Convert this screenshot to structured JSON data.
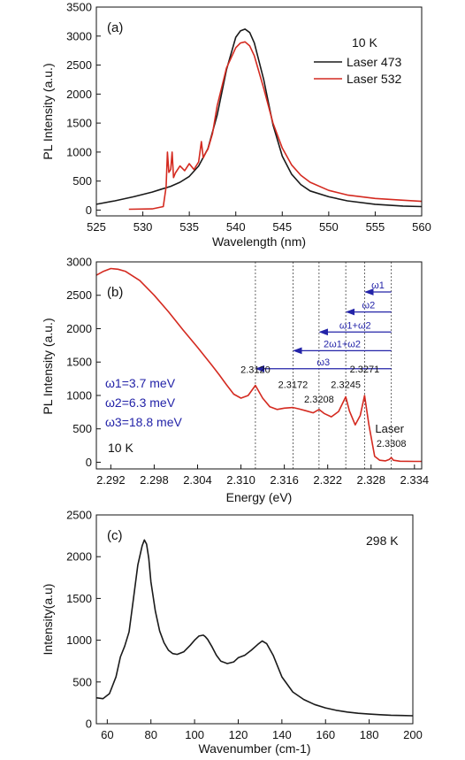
{
  "colors": {
    "black": "#1a1a1a",
    "red": "#d42a20",
    "blue": "#2323a8",
    "axis": "#111111"
  },
  "chart_data": [
    {
      "type": "line",
      "panel_label": "(a)",
      "xlabel": "Wavelength (nm)",
      "ylabel": "PL Intensity (a.u.)",
      "xlim": [
        525,
        560
      ],
      "ylim": [
        -100,
        3500
      ],
      "x_ticks": [
        "525",
        "530",
        "535",
        "540",
        "545",
        "550",
        "555",
        "560"
      ],
      "y_ticks": [
        "0",
        "500",
        "1000",
        "1500",
        "2000",
        "2500",
        "3000",
        "3500"
      ],
      "legend_title": "10 K",
      "legend_position": "top-right",
      "series": [
        {
          "name": "Laser 473",
          "color": "#1a1a1a",
          "x": [
            525,
            527,
            529,
            531,
            532,
            533,
            534,
            535,
            536,
            537,
            538,
            539,
            540,
            540.5,
            541,
            541.5,
            542,
            543,
            544,
            545,
            546,
            547,
            548,
            550,
            552,
            555,
            558,
            560
          ],
          "y": [
            100,
            160,
            230,
            310,
            360,
            410,
            480,
            580,
            760,
            1060,
            1640,
            2420,
            2980,
            3090,
            3120,
            3060,
            2880,
            2250,
            1470,
            930,
            620,
            440,
            330,
            230,
            160,
            100,
            70,
            60
          ]
        },
        {
          "name": "Laser 532",
          "color": "#d42a20",
          "x": [
            528.5,
            531,
            532.2,
            532.5,
            532.65,
            532.8,
            533,
            533.15,
            533.3,
            533.5,
            534,
            534.5,
            535,
            535.5,
            536,
            536.3,
            536.5,
            536.8,
            537,
            537.5,
            538,
            539,
            540,
            540.5,
            541,
            541.5,
            542,
            543,
            544,
            545,
            546,
            547,
            548,
            550,
            552,
            555,
            558,
            560
          ],
          "y": [
            15,
            20,
            60,
            400,
            1000,
            650,
            700,
            1000,
            560,
            640,
            760,
            680,
            800,
            700,
            830,
            1180,
            900,
            1000,
            1050,
            1320,
            1800,
            2450,
            2800,
            2880,
            2900,
            2830,
            2660,
            2100,
            1500,
            1070,
            780,
            600,
            480,
            340,
            260,
            200,
            170,
            150
          ]
        }
      ]
    },
    {
      "type": "line",
      "panel_label": "(b)",
      "xlabel": "Energy (eV)",
      "ylabel": "PL Intensity (a.u.)",
      "xlim": [
        2.29,
        2.335
      ],
      "ylim": [
        -100,
        3000
      ],
      "x_ticks": [
        "2.292",
        "2.298",
        "2.304",
        "2.310",
        "2.316",
        "2.322",
        "2.328",
        "2.334"
      ],
      "y_ticks": [
        "0",
        "500",
        "1000",
        "1500",
        "2000",
        "2500",
        "3000"
      ],
      "temperature": "10 K",
      "series": [
        {
          "name": "",
          "color": "#d42a20",
          "x": [
            2.29,
            2.291,
            2.292,
            2.293,
            2.294,
            2.296,
            2.298,
            2.3,
            2.302,
            2.304,
            2.306,
            2.307,
            2.308,
            2.309,
            2.31,
            2.311,
            2.312,
            2.313,
            2.314,
            2.315,
            2.316,
            2.3172,
            2.318,
            2.319,
            2.32,
            2.3208,
            2.3215,
            2.3225,
            2.3235,
            2.3245,
            2.325,
            2.3258,
            2.3265,
            2.3271,
            2.3277,
            2.3285,
            2.3292,
            2.33,
            2.3305,
            2.3308,
            2.3311,
            2.332,
            2.334,
            2.335
          ],
          "y": [
            2800,
            2860,
            2900,
            2890,
            2860,
            2720,
            2500,
            2250,
            1980,
            1720,
            1450,
            1310,
            1160,
            1020,
            960,
            1000,
            1150,
            960,
            830,
            790,
            810,
            820,
            800,
            770,
            740,
            790,
            730,
            680,
            760,
            980,
            770,
            560,
            700,
            1000,
            560,
            90,
            30,
            20,
            40,
            70,
            30,
            15,
            12,
            12
          ]
        }
      ],
      "peak_labels": [
        {
          "x": 2.312,
          "text": "2.3120"
        },
        {
          "x": 2.3172,
          "text": "2.3172"
        },
        {
          "x": 2.3208,
          "text": "2.3208"
        },
        {
          "x": 2.3245,
          "text": "2.3245"
        },
        {
          "x": 2.3271,
          "text": "2.3271"
        },
        {
          "x": 2.3308,
          "text": "2.3308",
          "title": "Laser"
        }
      ],
      "arrows": [
        {
          "label": "ω1",
          "from": 2.3308,
          "to": 2.3271,
          "y": 2550
        },
        {
          "label": "ω2",
          "from": 2.3308,
          "to": 2.3245,
          "y": 2250
        },
        {
          "label": "ω1+ω2",
          "from": 2.3308,
          "to": 2.3208,
          "y": 1950
        },
        {
          "label": "2ω1+ω2",
          "from": 2.3308,
          "to": 2.3172,
          "y": 1670
        },
        {
          "label": "ω3",
          "from": 2.3308,
          "to": 2.312,
          "y": 1400
        }
      ],
      "annotations": [
        "ω1=3.7 meV",
        "ω2=6.3 meV",
        "ω3=18.8 meV"
      ]
    },
    {
      "type": "line",
      "panel_label": "(c)",
      "xlabel": "Wavenumber (cm-1)",
      "ylabel": "Intensity(a.u)",
      "xlim": [
        55,
        200
      ],
      "ylim": [
        0,
        2500
      ],
      "x_ticks": [
        "60",
        "80",
        "100",
        "120",
        "140",
        "160",
        "180",
        "200"
      ],
      "y_ticks": [
        "0",
        "500",
        "1000",
        "1500",
        "2000",
        "2500"
      ],
      "temperature": "298 K",
      "series": [
        {
          "name": "",
          "color": "#1a1a1a",
          "x": [
            55,
            58,
            61,
            64,
            66,
            68,
            70,
            72,
            74,
            76,
            77,
            78,
            79,
            80,
            82,
            84,
            86,
            88,
            90,
            92,
            95,
            98,
            100,
            102,
            104,
            105,
            106,
            108,
            110,
            112,
            115,
            118,
            120,
            123,
            126,
            129,
            131,
            133,
            136,
            140,
            145,
            150,
            155,
            160,
            165,
            170,
            175,
            180,
            185,
            190,
            195,
            200
          ],
          "y": [
            310,
            300,
            360,
            560,
            800,
            930,
            1100,
            1500,
            1900,
            2130,
            2200,
            2150,
            1980,
            1700,
            1350,
            1110,
            970,
            880,
            840,
            830,
            860,
            940,
            1000,
            1050,
            1060,
            1040,
            1010,
            920,
            820,
            750,
            720,
            740,
            790,
            820,
            880,
            950,
            990,
            960,
            820,
            560,
            380,
            290,
            230,
            190,
            160,
            140,
            125,
            115,
            108,
            102,
            98,
            95
          ]
        }
      ]
    }
  ]
}
